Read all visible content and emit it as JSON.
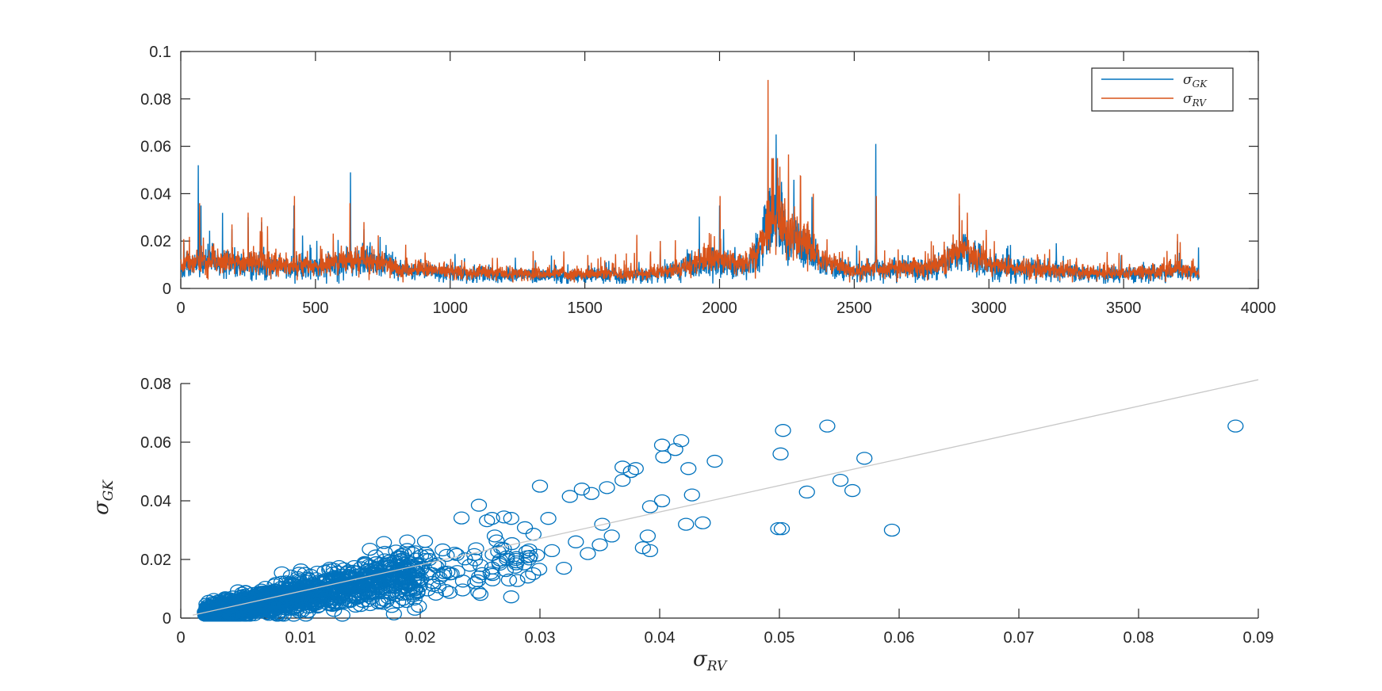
{
  "colors": {
    "gk": "#0072BD",
    "rv": "#D95319",
    "fit_line": "#C8C8C8",
    "axis": "#262626"
  },
  "chart_data": [
    {
      "type": "line",
      "xlim": [
        0,
        4000
      ],
      "ylim": [
        0,
        0.1
      ],
      "xticks": [
        0,
        500,
        1000,
        1500,
        2000,
        2500,
        3000,
        3500,
        4000
      ],
      "yticks": [
        0,
        0.02,
        0.04,
        0.06,
        0.08,
        0.1
      ],
      "xtick_labels": [
        "0",
        "500",
        "1000",
        "1500",
        "2000",
        "2500",
        "3000",
        "3500",
        "4000"
      ],
      "ytick_labels": [
        "0",
        "0.02",
        "0.04",
        "0.06",
        "0.08",
        "0.1"
      ],
      "grid": false,
      "legend": {
        "placement": "top-right",
        "entries": [
          {
            "main": "σ",
            "sub": "GK"
          },
          {
            "main": "σ",
            "sub": "RV"
          }
        ]
      },
      "series_profile": {
        "x_range": [
          1,
          3780
        ],
        "regimes": [
          {
            "x": 0,
            "level": 0.009
          },
          {
            "x": 80,
            "level": 0.012
          },
          {
            "x": 200,
            "level": 0.011
          },
          {
            "x": 350,
            "level": 0.01
          },
          {
            "x": 450,
            "level": 0.009
          },
          {
            "x": 600,
            "level": 0.011
          },
          {
            "x": 700,
            "level": 0.012
          },
          {
            "x": 800,
            "level": 0.009
          },
          {
            "x": 1000,
            "level": 0.007
          },
          {
            "x": 1300,
            "level": 0.006
          },
          {
            "x": 1500,
            "level": 0.006
          },
          {
            "x": 1750,
            "level": 0.006
          },
          {
            "x": 1900,
            "level": 0.01
          },
          {
            "x": 2000,
            "level": 0.012
          },
          {
            "x": 2100,
            "level": 0.01
          },
          {
            "x": 2150,
            "level": 0.018
          },
          {
            "x": 2200,
            "level": 0.03
          },
          {
            "x": 2300,
            "level": 0.02
          },
          {
            "x": 2400,
            "level": 0.01
          },
          {
            "x": 2500,
            "level": 0.007
          },
          {
            "x": 2600,
            "level": 0.008
          },
          {
            "x": 2800,
            "level": 0.009
          },
          {
            "x": 2900,
            "level": 0.016
          },
          {
            "x": 3000,
            "level": 0.01
          },
          {
            "x": 3200,
            "level": 0.008
          },
          {
            "x": 3500,
            "level": 0.006
          },
          {
            "x": 3700,
            "level": 0.008
          },
          {
            "x": 3780,
            "level": 0.006
          }
        ],
        "spikes_gk": [
          {
            "x": 65,
            "y": 0.052
          },
          {
            "x": 75,
            "y": 0.035
          },
          {
            "x": 190,
            "y": 0.025
          },
          {
            "x": 250,
            "y": 0.03
          },
          {
            "x": 300,
            "y": 0.028
          },
          {
            "x": 420,
            "y": 0.035
          },
          {
            "x": 630,
            "y": 0.049
          },
          {
            "x": 680,
            "y": 0.025
          },
          {
            "x": 1780,
            "y": 0.02
          },
          {
            "x": 2000,
            "y": 0.035
          },
          {
            "x": 2180,
            "y": 0.062
          },
          {
            "x": 2195,
            "y": 0.055
          },
          {
            "x": 2210,
            "y": 0.065
          },
          {
            "x": 2230,
            "y": 0.045
          },
          {
            "x": 2280,
            "y": 0.03
          },
          {
            "x": 2580,
            "y": 0.061
          },
          {
            "x": 2890,
            "y": 0.035
          },
          {
            "x": 3700,
            "y": 0.02
          }
        ],
        "spikes_rv": [
          {
            "x": 70,
            "y": 0.036
          },
          {
            "x": 190,
            "y": 0.027
          },
          {
            "x": 250,
            "y": 0.032
          },
          {
            "x": 300,
            "y": 0.03
          },
          {
            "x": 422,
            "y": 0.039
          },
          {
            "x": 628,
            "y": 0.036
          },
          {
            "x": 680,
            "y": 0.028
          },
          {
            "x": 1780,
            "y": 0.02
          },
          {
            "x": 2002,
            "y": 0.039
          },
          {
            "x": 2180,
            "y": 0.088
          },
          {
            "x": 2200,
            "y": 0.055
          },
          {
            "x": 2215,
            "y": 0.055
          },
          {
            "x": 2280,
            "y": 0.03
          },
          {
            "x": 2582,
            "y": 0.039
          },
          {
            "x": 2890,
            "y": 0.04
          },
          {
            "x": 2920,
            "y": 0.032
          },
          {
            "x": 3020,
            "y": 0.02
          },
          {
            "x": 3700,
            "y": 0.023
          }
        ]
      }
    },
    {
      "type": "scatter",
      "xlim": [
        0,
        0.09
      ],
      "ylim": [
        0,
        0.08
      ],
      "xticks": [
        0,
        0.01,
        0.02,
        0.03,
        0.04,
        0.05,
        0.06,
        0.07,
        0.08,
        0.09
      ],
      "yticks": [
        0,
        0.02,
        0.04,
        0.06,
        0.08
      ],
      "xtick_labels": [
        "0",
        "0.01",
        "0.02",
        "0.03",
        "0.04",
        "0.05",
        "0.06",
        "0.07",
        "0.08",
        "0.09"
      ],
      "ytick_labels": [
        "0",
        "0.02",
        "0.04",
        "0.06",
        "0.08"
      ],
      "xlabel": {
        "main": "σ",
        "sub": "RV"
      },
      "ylabel": {
        "main": "σ",
        "sub": "GK"
      },
      "grid": false,
      "fit_line": {
        "x": [
          0.001,
          0.09
        ],
        "y": [
          0.001,
          0.0813
        ]
      },
      "cloud": {
        "x_range": [
          0.001,
          0.03
        ],
        "slope": 0.75,
        "count": 1400
      },
      "outliers": [
        [
          0.0881,
          0.0655
        ],
        [
          0.054,
          0.0655
        ],
        [
          0.0503,
          0.064
        ],
        [
          0.0418,
          0.0605
        ],
        [
          0.0402,
          0.059
        ],
        [
          0.0413,
          0.0575
        ],
        [
          0.0403,
          0.055
        ],
        [
          0.0446,
          0.0535
        ],
        [
          0.0501,
          0.056
        ],
        [
          0.0571,
          0.0545
        ],
        [
          0.0369,
          0.0515
        ],
        [
          0.038,
          0.051
        ],
        [
          0.0376,
          0.05
        ],
        [
          0.0424,
          0.051
        ],
        [
          0.0369,
          0.047
        ],
        [
          0.0551,
          0.047
        ],
        [
          0.03,
          0.045
        ],
        [
          0.0335,
          0.044
        ],
        [
          0.0356,
          0.0445
        ],
        [
          0.0523,
          0.043
        ],
        [
          0.0561,
          0.0435
        ],
        [
          0.0343,
          0.0425
        ],
        [
          0.0325,
          0.0415
        ],
        [
          0.0402,
          0.04
        ],
        [
          0.0427,
          0.042
        ],
        [
          0.0249,
          0.0385
        ],
        [
          0.0392,
          0.038
        ],
        [
          0.0422,
          0.032
        ],
        [
          0.0436,
          0.0325
        ],
        [
          0.0499,
          0.0305
        ],
        [
          0.0502,
          0.0305
        ],
        [
          0.0594,
          0.03
        ],
        [
          0.039,
          0.028
        ],
        [
          0.036,
          0.028
        ],
        [
          0.0386,
          0.024
        ],
        [
          0.0392,
          0.023
        ],
        [
          0.035,
          0.025
        ],
        [
          0.033,
          0.026
        ],
        [
          0.027,
          0.0345
        ],
        [
          0.026,
          0.034
        ],
        [
          0.0276,
          0.034
        ],
        [
          0.0307,
          0.034
        ],
        [
          0.0352,
          0.032
        ],
        [
          0.029,
          0.014
        ],
        [
          0.032,
          0.017
        ],
        [
          0.031,
          0.023
        ],
        [
          0.034,
          0.022
        ],
        [
          0.028,
          0.02
        ]
      ]
    }
  ]
}
